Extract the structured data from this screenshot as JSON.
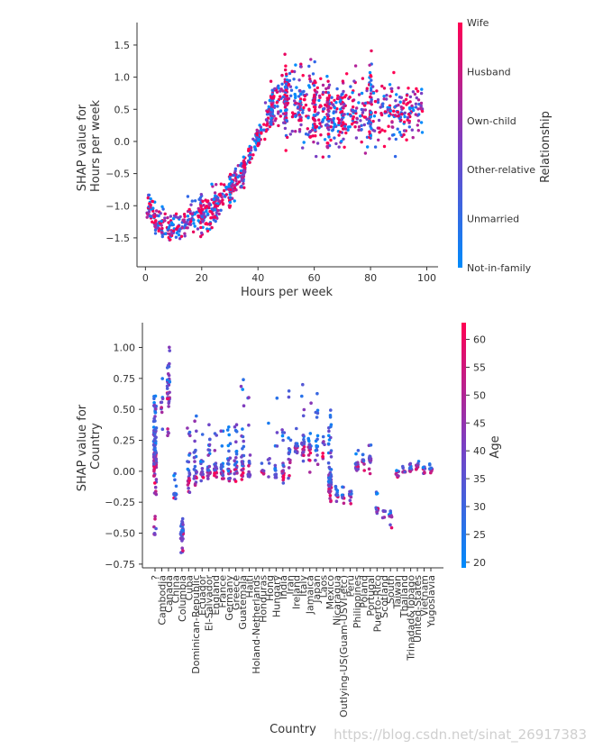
{
  "colors": {
    "blue": "#008bfb",
    "magenta": "#ff0052",
    "purple": "#7a3fc3"
  },
  "watermark": "https://blog.csdn.net/sinat_26917383",
  "chart_data": [
    {
      "type": "scatter",
      "xlabel": "Hours per week",
      "ylabel": "SHAP value for\nHours per week",
      "ylabel_lines": [
        "SHAP value for",
        "Hours per week"
      ],
      "xlim": [
        -3,
        104
      ],
      "ylim": [
        -1.95,
        1.85
      ],
      "xticks": [
        0,
        20,
        40,
        60,
        80,
        100
      ],
      "yticks": [
        -1.5,
        -1.0,
        -0.5,
        0.0,
        0.5,
        1.0,
        1.5
      ],
      "xtick_labels": [
        "0",
        "20",
        "40",
        "60",
        "80",
        "100"
      ],
      "ytick_labels": [
        "−1.5",
        "−1.0",
        "−0.5",
        "0.0",
        "0.5",
        "1.0",
        "1.5"
      ],
      "colorbar": {
        "label": "Relationship",
        "categories": [
          "Wife",
          "Husband",
          "Own-child",
          "Other-relative",
          "Unmarried",
          "Not-in-family"
        ]
      },
      "trend": [
        [
          1,
          -1.0
        ],
        [
          5,
          -1.25
        ],
        [
          10,
          -1.35
        ],
        [
          15,
          -1.25
        ],
        [
          20,
          -1.15
        ],
        [
          25,
          -1.0
        ],
        [
          30,
          -0.75
        ],
        [
          35,
          -0.45
        ],
        [
          38,
          -0.1
        ],
        [
          40,
          0.05
        ],
        [
          42,
          0.2
        ],
        [
          44,
          0.45
        ],
        [
          46,
          0.6
        ],
        [
          50,
          0.65
        ],
        [
          55,
          0.6
        ],
        [
          60,
          0.5
        ],
        [
          65,
          0.45
        ],
        [
          70,
          0.45
        ],
        [
          75,
          0.45
        ],
        [
          80,
          0.5
        ],
        [
          85,
          0.5
        ],
        [
          90,
          0.45
        ],
        [
          95,
          0.5
        ],
        [
          99,
          0.5
        ]
      ],
      "spread": [
        [
          1,
          0.35
        ],
        [
          10,
          0.4
        ],
        [
          20,
          0.4
        ],
        [
          30,
          0.35
        ],
        [
          38,
          0.3
        ],
        [
          40,
          0.15
        ],
        [
          45,
          0.45
        ],
        [
          50,
          0.75
        ],
        [
          60,
          0.8
        ],
        [
          70,
          0.8
        ],
        [
          80,
          0.9
        ],
        [
          90,
          0.6
        ],
        [
          99,
          0.5
        ]
      ],
      "x_range": [
        1,
        99
      ]
    },
    {
      "type": "scatter",
      "xlabel": "Country",
      "ylabel": "SHAP value for\nCountry",
      "ylabel_lines": [
        "SHAP value for",
        "Country"
      ],
      "ylim": [
        -0.78,
        1.2
      ],
      "yticks": [
        -0.75,
        -0.5,
        -0.25,
        0.0,
        0.25,
        0.5,
        0.75,
        1.0
      ],
      "ytick_labels": [
        "−0.75",
        "−0.50",
        "−0.25",
        "0.00",
        "0.25",
        "0.50",
        "0.75",
        "1.00"
      ],
      "categories": [
        "?",
        "Cambodia",
        "Canada",
        "China",
        "Columbia",
        "Cuba",
        "Dominican-Republic",
        "Ecuador",
        "El-Salvador",
        "England",
        "France",
        "Germany",
        "Greece",
        "Guatemala",
        "Haiti",
        "Holand-Netherlands",
        "Honduras",
        "Hong",
        "Hungary",
        "India",
        "Iran",
        "Ireland",
        "Italy",
        "Jamaica",
        "Japan",
        "Laos",
        "Mexico",
        "Nicaragua",
        "Outlying-US(Guam-USVI-etc)",
        "Peru",
        "Philippines",
        "Poland",
        "Portugal",
        "Puerto-Rico",
        "Scotland",
        "South",
        "Taiwan",
        "Thailand",
        "Trinadad&Tobago",
        "United-States",
        "Vietnam",
        "Yugoslavia"
      ],
      "colorbar": {
        "label": "Age",
        "ticks": [
          20,
          25,
          30,
          35,
          40,
          45,
          50,
          55,
          60
        ],
        "range": [
          19,
          63
        ]
      },
      "point_ranges": [
        [
          -0.52,
          0.62,
          0.15
        ],
        [
          0.3,
          0.82,
          0.55
        ],
        [
          0.25,
          1.08,
          0.65
        ],
        [
          -0.26,
          0.0,
          -0.2
        ],
        [
          -0.68,
          -0.38,
          -0.5
        ],
        [
          -0.22,
          0.42,
          0.0
        ],
        [
          -0.12,
          0.5,
          -0.02
        ],
        [
          -0.1,
          0.3,
          -0.02
        ],
        [
          -0.08,
          0.38,
          0.0
        ],
        [
          -0.1,
          0.4,
          0.0
        ],
        [
          -0.1,
          0.38,
          0.0
        ],
        [
          -0.12,
          0.36,
          0.0
        ],
        [
          -0.12,
          0.45,
          0.05
        ],
        [
          -0.12,
          0.75,
          0.02
        ],
        [
          -0.05,
          0.72,
          0.05
        ],
        [
          0.0,
          0.0,
          0.0
        ],
        [
          -0.08,
          0.1,
          0.0
        ],
        [
          -0.05,
          0.77,
          0.05
        ],
        [
          -0.05,
          0.6,
          0.0
        ],
        [
          -0.15,
          0.35,
          0.0
        ],
        [
          -0.1,
          0.72,
          0.1
        ],
        [
          0.05,
          0.4,
          0.2
        ],
        [
          0.05,
          0.72,
          0.2
        ],
        [
          -0.05,
          0.68,
          0.2
        ],
        [
          -0.05,
          0.72,
          0.15
        ],
        [
          0.05,
          0.32,
          0.25
        ],
        [
          -0.25,
          0.52,
          -0.1
        ],
        [
          -0.25,
          -0.12,
          -0.2
        ],
        [
          -0.28,
          -0.12,
          -0.2
        ],
        [
          -0.28,
          -0.15,
          -0.2
        ],
        [
          -0.05,
          0.25,
          0.05
        ],
        [
          0.0,
          0.15,
          0.08
        ],
        [
          -0.05,
          0.22,
          0.1
        ],
        [
          -0.35,
          -0.15,
          -0.3
        ],
        [
          -0.38,
          -0.3,
          -0.32
        ],
        [
          -0.47,
          -0.28,
          -0.36
        ],
        [
          -0.05,
          0.02,
          0.0
        ],
        [
          -0.05,
          0.05,
          0.0
        ],
        [
          -0.02,
          0.08,
          0.02
        ],
        [
          -0.05,
          0.1,
          0.05
        ],
        [
          -0.02,
          0.06,
          0.02
        ],
        [
          -0.02,
          0.06,
          0.02
        ]
      ],
      "point_counts": [
        120,
        10,
        35,
        14,
        50,
        22,
        25,
        15,
        25,
        20,
        18,
        22,
        24,
        28,
        14,
        0,
        10,
        5,
        14,
        18,
        16,
        20,
        22,
        18,
        16,
        8,
        70,
        14,
        10,
        10,
        18,
        10,
        14,
        14,
        8,
        12,
        12,
        10,
        10,
        12,
        10,
        8
      ]
    }
  ]
}
